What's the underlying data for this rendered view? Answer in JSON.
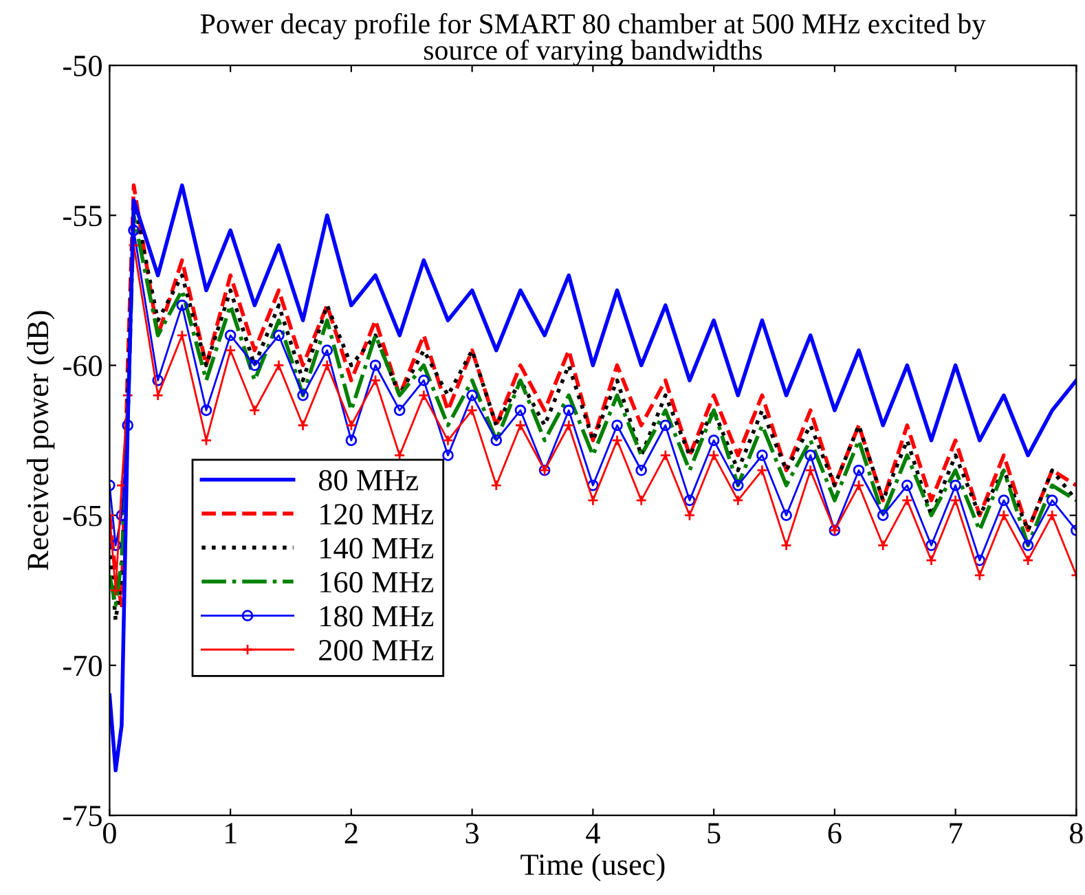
{
  "chart_data": {
    "type": "line",
    "title": "Power decay profile for SMART 80 chamber at 500 MHz excited by\nsource of varying bandwidths",
    "xlabel": "Time (usec)",
    "ylabel": "Received power (dB)",
    "x": [
      0,
      0.05,
      0.1,
      0.15,
      0.2,
      0.4,
      0.6,
      0.8,
      1.0,
      1.2,
      1.4,
      1.6,
      1.8,
      2.0,
      2.2,
      2.4,
      2.6,
      2.8,
      3.0,
      3.2,
      3.4,
      3.6,
      3.8,
      4.0,
      4.2,
      4.4,
      4.6,
      4.8,
      5.0,
      5.2,
      5.4,
      5.6,
      5.8,
      6.0,
      6.2,
      6.4,
      6.6,
      6.8,
      7.0,
      7.2,
      7.4,
      7.6,
      7.8,
      8.0
    ],
    "series": [
      {
        "name": "80 MHz",
        "color": "#0000ff",
        "line_style": "solid",
        "marker": "none",
        "values": [
          -71,
          -73.5,
          -72,
          -62,
          -54.5,
          -57,
          -54,
          -57.5,
          -55.5,
          -58,
          -56,
          -58.5,
          -55,
          -58,
          -57,
          -59,
          -56.5,
          -58.5,
          -57.5,
          -59.5,
          -57.5,
          -59,
          -57,
          -60,
          -57.5,
          -60,
          -58,
          -60.5,
          -58.5,
          -61,
          -58.5,
          -61,
          -59,
          -61.5,
          -59.5,
          -62,
          -60,
          -62.5,
          -60,
          -62.5,
          -61,
          -63,
          -61.5,
          -60.5
        ]
      },
      {
        "name": "120 MHz",
        "color": "#ff0000",
        "line_style": "dashed",
        "marker": "none",
        "values": [
          -65,
          -67,
          -68,
          -60,
          -54,
          -59,
          -56.5,
          -60,
          -57,
          -59.5,
          -57.5,
          -60,
          -58,
          -60.5,
          -58.5,
          -61,
          -59,
          -61.5,
          -59.5,
          -62,
          -60,
          -61.5,
          -59.5,
          -62.5,
          -60,
          -62,
          -60.5,
          -63,
          -61,
          -63,
          -61,
          -63.5,
          -61.5,
          -64,
          -62,
          -64.5,
          -62,
          -64.5,
          -62.5,
          -65,
          -63,
          -65.5,
          -63.5,
          -64
        ]
      },
      {
        "name": "140 MHz",
        "color": "#000000",
        "line_style": "dotted",
        "marker": "none",
        "values": [
          -66,
          -68.5,
          -67,
          -61,
          -54.5,
          -58.5,
          -57,
          -60,
          -57.5,
          -60,
          -58,
          -60.5,
          -58,
          -60,
          -59,
          -61,
          -59.5,
          -61,
          -59.5,
          -62,
          -60.5,
          -62,
          -60,
          -62.5,
          -60.5,
          -63,
          -61,
          -63,
          -61.5,
          -63.5,
          -61.5,
          -63.5,
          -62,
          -64,
          -62,
          -64.5,
          -62.5,
          -65,
          -63,
          -65,
          -63.5,
          -65.5,
          -63.5,
          -64.5
        ]
      },
      {
        "name": "160 MHz",
        "color": "#008000",
        "line_style": "dashdot",
        "marker": "none",
        "values": [
          -67,
          -68,
          -66.5,
          -62,
          -55,
          -59,
          -57.5,
          -60.5,
          -58,
          -60.5,
          -58.5,
          -61,
          -58.5,
          -61.5,
          -59,
          -61,
          -60,
          -62,
          -60.5,
          -62.5,
          -60.5,
          -62.5,
          -61,
          -63,
          -61,
          -63,
          -61.5,
          -63.5,
          -61.5,
          -64,
          -62,
          -64,
          -62.5,
          -64.5,
          -62.5,
          -65,
          -63,
          -65,
          -63.5,
          -65.5,
          -63.5,
          -66,
          -64,
          -64.5
        ]
      },
      {
        "name": "180 MHz",
        "color": "#0000ff",
        "line_style": "solid",
        "marker": "circle",
        "values": [
          -64,
          -66,
          -65,
          -62,
          -55.5,
          -60.5,
          -58,
          -61.5,
          -59,
          -60,
          -59,
          -61,
          -59.5,
          -62.5,
          -60,
          -61.5,
          -60.5,
          -63,
          -61,
          -62.5,
          -61.5,
          -63.5,
          -61.5,
          -64,
          -62,
          -63.5,
          -62,
          -64.5,
          -62.5,
          -64,
          -63,
          -65,
          -63,
          -65.5,
          -63.5,
          -65,
          -64,
          -66,
          -64,
          -66.5,
          -64.5,
          -66,
          -64.5,
          -65.5
        ]
      },
      {
        "name": "200 MHz",
        "color": "#ff0000",
        "line_style": "solid",
        "marker": "cross",
        "values": [
          -65,
          -67.5,
          -64,
          -61,
          -56,
          -61,
          -59,
          -62.5,
          -59.5,
          -61.5,
          -60,
          -62,
          -60,
          -62,
          -60.5,
          -63,
          -61,
          -62.5,
          -61.5,
          -64,
          -62,
          -63.5,
          -62,
          -64.5,
          -62.5,
          -64.5,
          -63,
          -65,
          -63,
          -64.5,
          -63.5,
          -66,
          -63.5,
          -65.5,
          -64,
          -66,
          -64.5,
          -66.5,
          -64.5,
          -67,
          -65,
          -66.5,
          -65,
          -67
        ]
      }
    ],
    "xlim": [
      0,
      8
    ],
    "xticks": [
      0,
      1,
      2,
      3,
      4,
      5,
      6,
      7,
      8
    ],
    "ylim": [
      -75,
      -50
    ],
    "yticks": [
      -75,
      -70,
      -65,
      -60,
      -55,
      -50
    ],
    "grid": false,
    "legend": "center left"
  }
}
